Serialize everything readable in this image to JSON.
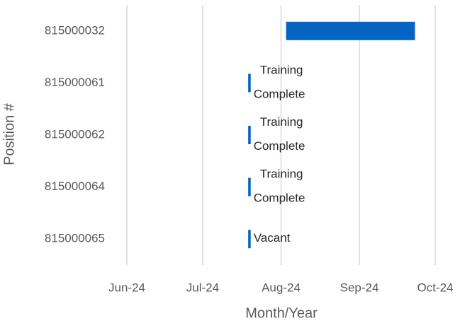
{
  "chart_data": {
    "type": "gantt",
    "y_axis_label": "Position #",
    "x_axis_label": "Month/Year",
    "categories": [
      "815000032",
      "815000061",
      "815000062",
      "815000064",
      "815000065"
    ],
    "starts": [
      45507,
      45492,
      45492,
      45492,
      45492
    ],
    "ends": [
      45558,
      45493,
      45493,
      45493,
      45493
    ],
    "labels": [
      null,
      [
        "Training",
        "Complete"
      ],
      [
        "Training",
        "Complete"
      ],
      [
        "Training",
        "Complete"
      ],
      [
        "Vacant"
      ]
    ],
    "color": "#0563c1",
    "xlim": [
      45444,
      45566
    ],
    "xticks": [
      {
        "value": 45444,
        "label": "Jun-24"
      },
      {
        "value": 45474,
        "label": "Jul-24"
      },
      {
        "value": 45505,
        "label": "Aug-24"
      },
      {
        "value": 45536,
        "label": "Sep-24"
      },
      {
        "value": 45566,
        "label": "Oct-24"
      }
    ],
    "grid": true
  }
}
